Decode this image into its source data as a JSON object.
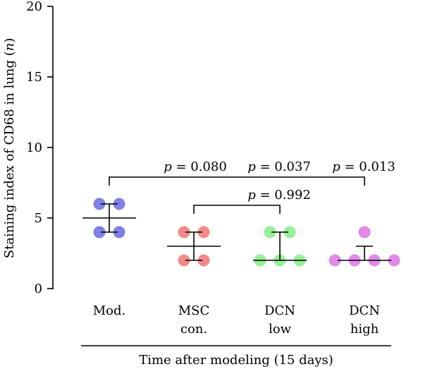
{
  "chart_data": {
    "type": "scatter",
    "ylabel_prefix": "Staining index of CD68 in lung (",
    "ylabel_italic": "n",
    "ylabel_suffix": ")",
    "xlabel": "Time after modeling (15 days)",
    "ylim": [
      0,
      20
    ],
    "yticks": [
      0,
      5,
      10,
      15,
      20
    ],
    "grid": false,
    "groups": [
      {
        "label_lines": [
          "Mod."
        ],
        "color": "#8080e6",
        "values": [
          6,
          6,
          4,
          4
        ],
        "mean": 5,
        "err_low": 4,
        "err_high": 6
      },
      {
        "label_lines": [
          "MSC",
          "con."
        ],
        "color": "#f08a8a",
        "values": [
          4,
          4,
          2,
          2
        ],
        "mean": 3,
        "err_low": 2,
        "err_high": 4
      },
      {
        "label_lines": [
          "DCN",
          "low"
        ],
        "color": "#99ee99",
        "values": [
          4,
          4,
          2,
          2,
          2
        ],
        "mean": 2,
        "err_low": 2,
        "err_high": 4
      },
      {
        "label_lines": [
          "DCN",
          "high"
        ],
        "color": "#e08ae8",
        "values": [
          4,
          2,
          2,
          2,
          2
        ],
        "mean": 2,
        "err_low": 2,
        "err_high": 3
      }
    ],
    "annotations": [
      {
        "text": "= 0.080",
        "p_symbol": "p",
        "near_group": 1
      },
      {
        "text": "= 0.037",
        "p_symbol": "p",
        "near_group": 2
      },
      {
        "text": "= 0.013",
        "p_symbol": "p",
        "near_group": 3
      },
      {
        "text": "= 0.992",
        "p_symbol": "p",
        "near_group": 2
      }
    ]
  }
}
